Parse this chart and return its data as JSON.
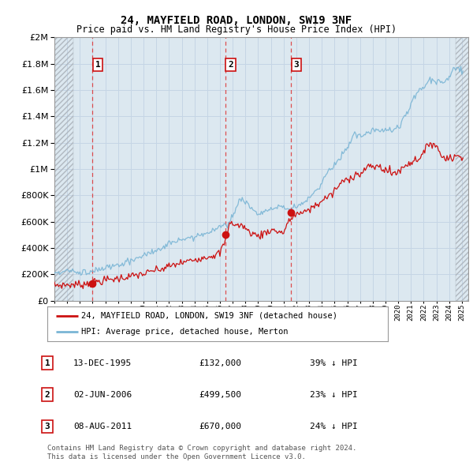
{
  "title": "24, MAYFIELD ROAD, LONDON, SW19 3NF",
  "subtitle": "Price paid vs. HM Land Registry's House Price Index (HPI)",
  "ylim": [
    0,
    2000000
  ],
  "yticks": [
    0,
    200000,
    400000,
    600000,
    800000,
    1000000,
    1200000,
    1400000,
    1600000,
    1800000,
    2000000
  ],
  "xlim_start": 1993.0,
  "xlim_end": 2025.5,
  "sale_dates": [
    1996.0,
    2006.42,
    2011.58
  ],
  "sale_prices": [
    132000,
    499500,
    670000
  ],
  "sale_labels": [
    "1",
    "2",
    "3"
  ],
  "hpi_color": "#7ab5d5",
  "price_color": "#cc1111",
  "vline_color": "#dd3333",
  "grid_color": "#c5d5e5",
  "bg_color": "#dce8f0",
  "legend_label_price": "24, MAYFIELD ROAD, LONDON, SW19 3NF (detached house)",
  "legend_label_hpi": "HPI: Average price, detached house, Merton",
  "table_rows": [
    {
      "label": "1",
      "date": "13-DEC-1995",
      "price": "£132,000",
      "hpi": "39% ↓ HPI"
    },
    {
      "label": "2",
      "date": "02-JUN-2006",
      "price": "£499,500",
      "hpi": "23% ↓ HPI"
    },
    {
      "label": "3",
      "date": "08-AUG-2011",
      "price": "£670,000",
      "hpi": "24% ↓ HPI"
    }
  ],
  "footnote": "Contains HM Land Registry data © Crown copyright and database right 2024.\nThis data is licensed under the Open Government Licence v3.0."
}
